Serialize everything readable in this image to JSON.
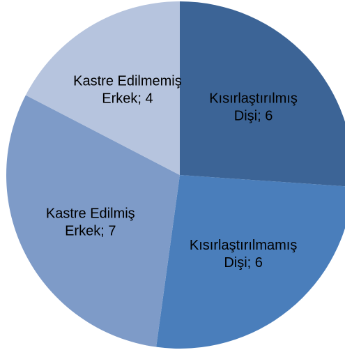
{
  "chart_data": {
    "type": "pie",
    "values": [
      6,
      6,
      7,
      4
    ],
    "value_labels": [
      "Kısırlaştırılmış Dişi; 6",
      "Kısırlaştırılmamış Dişi; 6",
      "Kastre Edilmiş Erkek; 7",
      "Kastre Edilmemiş Erkek; 4"
    ],
    "colors": [
      "#3c6496",
      "#4a7ebb",
      "#7e9bc8",
      "#b6c4de"
    ]
  }
}
